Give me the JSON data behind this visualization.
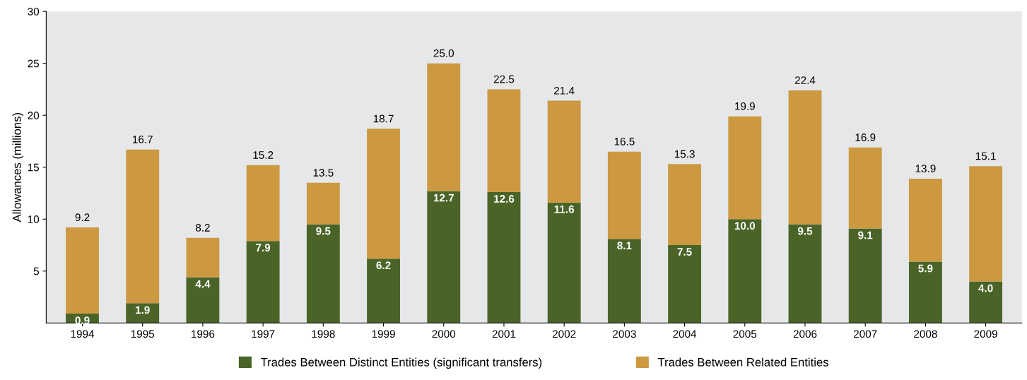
{
  "chart_data": {
    "type": "bar",
    "stacked": true,
    "ylabel": "Allowances (millions)",
    "categories": [
      "1994",
      "1995",
      "1996",
      "1997",
      "1998",
      "1999",
      "2000",
      "2001",
      "2002",
      "2003",
      "2004",
      "2005",
      "2006",
      "2007",
      "2008",
      "2009"
    ],
    "series": [
      {
        "name": "Trades Between Distinct Entities (significant transfers)",
        "color": "#4a6428",
        "values": [
          0.9,
          1.9,
          4.4,
          7.9,
          9.5,
          6.2,
          12.7,
          12.6,
          11.6,
          8.1,
          7.5,
          10.0,
          9.5,
          9.1,
          5.9,
          4.0
        ],
        "value_labels": [
          "0.9",
          "1.9",
          "4.4",
          "7.9",
          "9.5",
          "6.2",
          "12.7",
          "12.6",
          "11.6",
          "8.1",
          "7.5",
          "10.0",
          "9.5",
          "9.1",
          "5.9",
          "4.0"
        ]
      },
      {
        "name": "Trades Between Related Entities",
        "color": "#cc9940",
        "values": [
          8.3,
          14.8,
          3.8,
          7.3,
          4.0,
          12.5,
          12.3,
          9.9,
          9.8,
          8.4,
          7.8,
          9.9,
          12.9,
          7.8,
          8.0,
          11.1
        ]
      }
    ],
    "totals": [
      "9.2",
      "16.7",
      "8.2",
      "15.2",
      "13.5",
      "18.7",
      "25.0",
      "22.5",
      "21.4",
      "16.5",
      "15.3",
      "19.9",
      "22.4",
      "16.9",
      "13.9",
      "15.1"
    ],
    "ylim": [
      0,
      30
    ],
    "yticks": [
      5,
      10,
      15,
      20,
      25,
      30
    ],
    "grid": false,
    "legend": "bottom"
  }
}
